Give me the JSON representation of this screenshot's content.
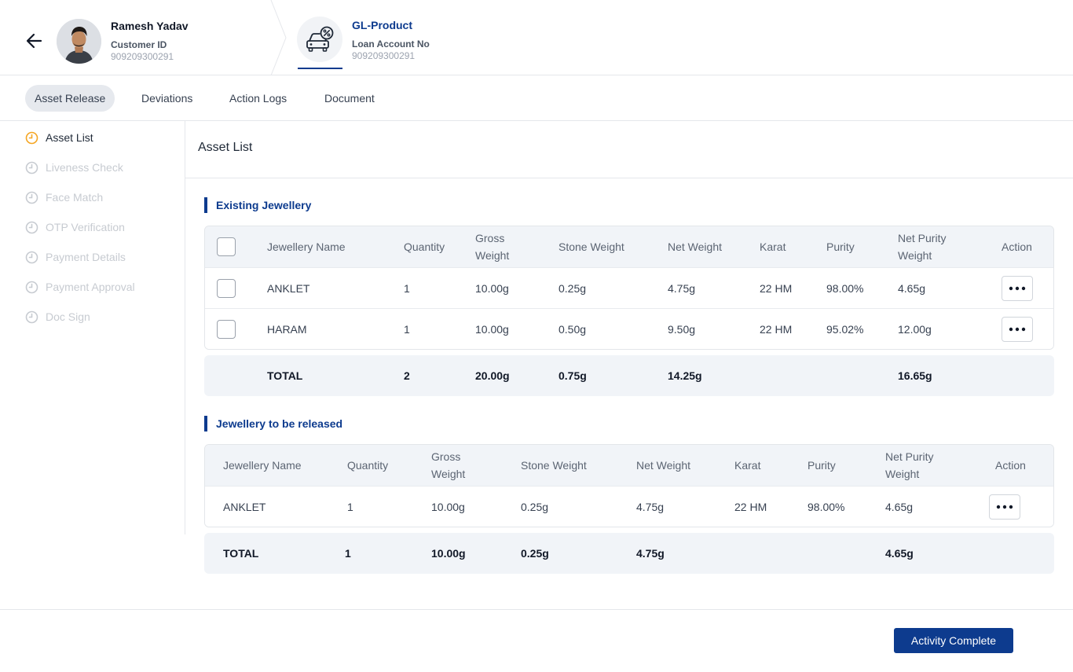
{
  "header": {
    "customer_name": "Ramesh Yadav",
    "customer_id_label": "Customer ID",
    "customer_id": "909209300291",
    "product_name": "GL-Product",
    "loan_account_label": "Loan Account No",
    "loan_account_no": "909209300291",
    "back_icon": "arrow-left-icon",
    "product_icon": "car-loan-icon"
  },
  "tabs": [
    {
      "label": "Asset Release",
      "active": true
    },
    {
      "label": "Deviations",
      "active": false
    },
    {
      "label": "Action Logs",
      "active": false
    },
    {
      "label": "Document",
      "active": false
    }
  ],
  "steps": [
    {
      "label": "Asset List",
      "active": true
    },
    {
      "label": "Liveness Check",
      "active": false
    },
    {
      "label": "Face Match",
      "active": false
    },
    {
      "label": "OTP Verification",
      "active": false
    },
    {
      "label": "Payment Details",
      "active": false
    },
    {
      "label": "Payment Approval",
      "active": false
    },
    {
      "label": "Doc Sign",
      "active": false
    }
  ],
  "main": {
    "title": "Asset List"
  },
  "existing": {
    "title": "Existing Jewellery",
    "headers": {
      "name": "Jewellery Name",
      "quantity": "Quantity",
      "gross": "Gross Weight",
      "stone": "Stone Weight",
      "net": "Net Weight",
      "karat": "Karat",
      "purity": "Purity",
      "net_purity": "Net Purity Weight",
      "action": "Action"
    },
    "rows": [
      {
        "name": "ANKLET",
        "quantity": "1",
        "gross": "10.00g",
        "stone": "0.25g",
        "net": "4.75g",
        "karat": "22 HM",
        "purity": "98.00%",
        "net_purity": "4.65g"
      },
      {
        "name": "HARAM",
        "quantity": "1",
        "gross": "10.00g",
        "stone": "0.50g",
        "net": "9.50g",
        "karat": "22 HM",
        "purity": "95.02%",
        "net_purity": "12.00g"
      }
    ],
    "total": {
      "label": "TOTAL",
      "quantity": "2",
      "gross": "20.00g",
      "stone": "0.75g",
      "net": "14.25g",
      "net_purity": "16.65g"
    }
  },
  "released": {
    "title": "Jewellery to be released",
    "headers": {
      "name": "Jewellery Name",
      "quantity": "Quantity",
      "gross": "Gross Weight",
      "stone": "Stone Weight",
      "net": "Net Weight",
      "karat": "Karat",
      "purity": "Purity",
      "net_purity": "Net Purity Weight",
      "action": "Action"
    },
    "rows": [
      {
        "name": "ANKLET",
        "quantity": "1",
        "gross": "10.00g",
        "stone": "0.25g",
        "net": "4.75g",
        "karat": "22 HM",
        "purity": "98.00%",
        "net_purity": "4.65g"
      }
    ],
    "total": {
      "label": "TOTAL",
      "quantity": "1",
      "gross": "10.00g",
      "stone": "0.25g",
      "net": "4.75g",
      "net_purity": "4.65g"
    }
  },
  "footer": {
    "primary_button": "Activity Complete"
  },
  "colors": {
    "primary": "#0d3b8e",
    "active_step": "#f5a623",
    "inactive_step": "#c7cbd1"
  }
}
